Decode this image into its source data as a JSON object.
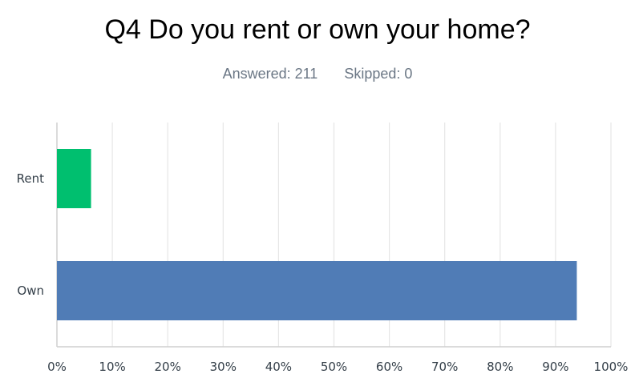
{
  "chart_data": {
    "type": "bar",
    "orientation": "horizontal",
    "title": "Q4 Do you rent or own your home?",
    "answered": "Answered: 211",
    "skipped": "Skipped: 0",
    "categories": [
      "Rent",
      "Own"
    ],
    "values": [
      6.16,
      93.84
    ],
    "colors": [
      "#00bf6f",
      "#507cb6"
    ],
    "xlim": [
      0,
      100
    ],
    "xticks": [
      "0%",
      "10%",
      "20%",
      "30%",
      "40%",
      "50%",
      "60%",
      "70%",
      "80%",
      "90%",
      "100%"
    ],
    "grid": true
  }
}
